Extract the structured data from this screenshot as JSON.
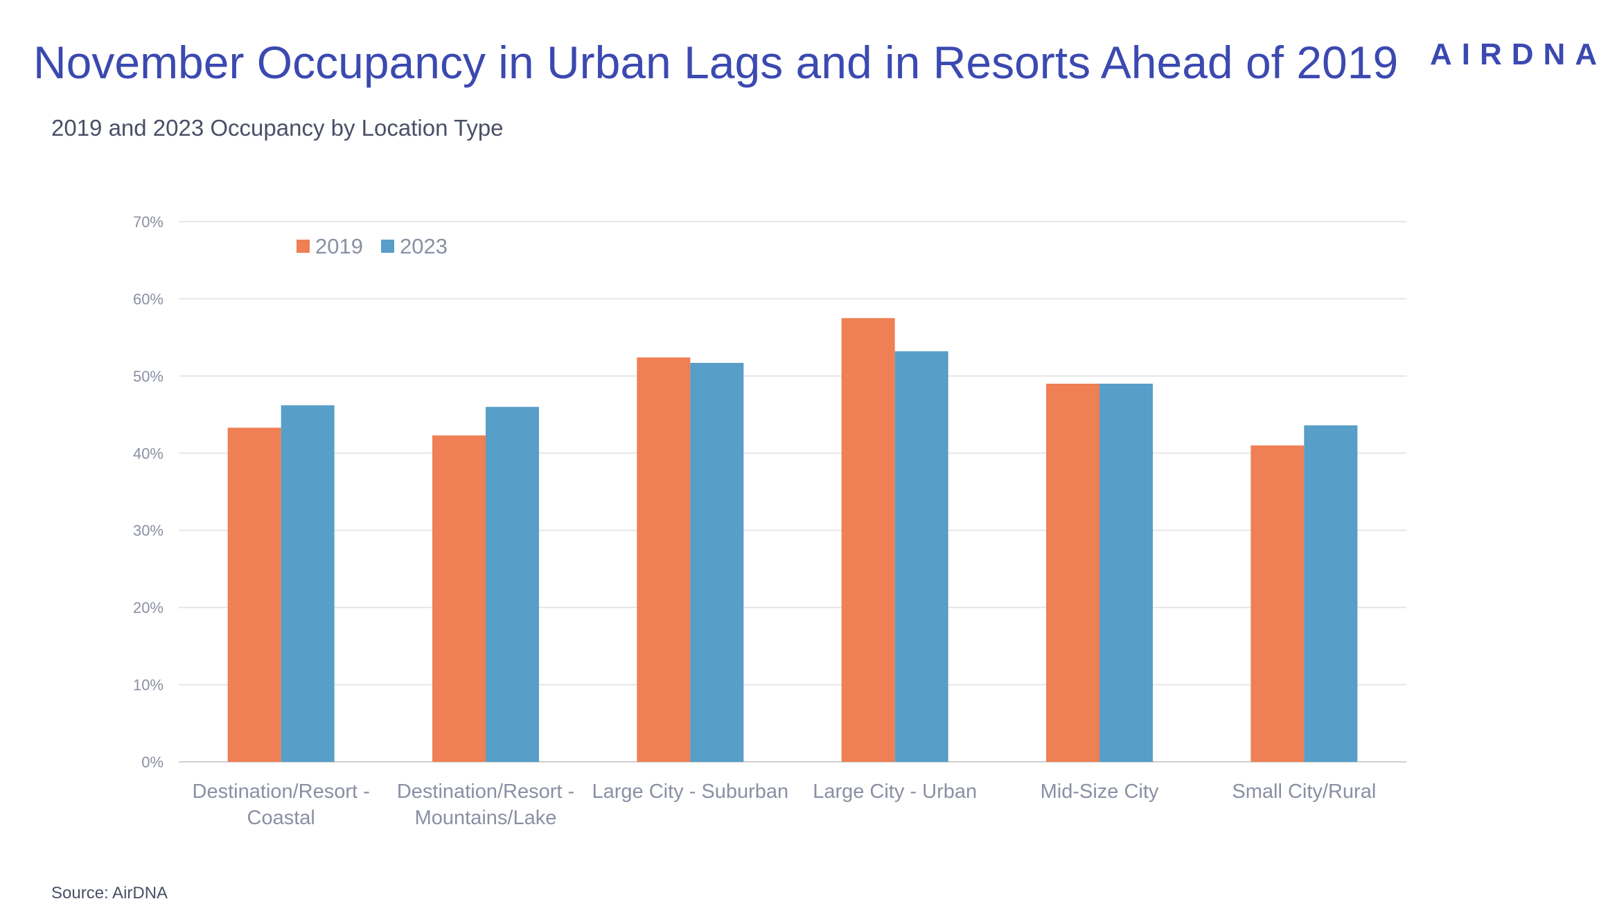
{
  "header": {
    "title": "November Occupancy in Urban Lags and in Resorts Ahead of 2019",
    "logo_text": "AIRDNA",
    "subtitle": "2019 and 2023 Occupancy by Location Type"
  },
  "footer": {
    "source": "Source: AirDNA"
  },
  "colors": {
    "title": "#3b49b0",
    "series_2019": "#ef7f55",
    "series_2023": "#579ec8",
    "grid": "#e6e6e6",
    "axis_text": "#8a8fa3"
  },
  "chart_data": {
    "type": "bar",
    "title": "",
    "xlabel": "",
    "ylabel": "",
    "ylim": [
      0,
      70
    ],
    "yticks": [
      0,
      10,
      20,
      30,
      40,
      50,
      60,
      70
    ],
    "ytick_labels": [
      "0%",
      "10%",
      "20%",
      "30%",
      "40%",
      "50%",
      "60%",
      "70%"
    ],
    "grid": true,
    "legend_position": "top-left",
    "categories": [
      [
        "Destination/Resort -",
        "Coastal"
      ],
      [
        "Destination/Resort -",
        "Mountains/Lake"
      ],
      [
        "Large City - Suburban"
      ],
      [
        "Large City - Urban"
      ],
      [
        "Mid-Size City"
      ],
      [
        "Small City/Rural"
      ]
    ],
    "series": [
      {
        "name": "2019",
        "color": "#ef7f55",
        "values": [
          43.3,
          42.3,
          52.4,
          57.5,
          49.0,
          41.0
        ]
      },
      {
        "name": "2023",
        "color": "#579ec8",
        "values": [
          46.2,
          46.0,
          51.7,
          53.2,
          49.0,
          43.6
        ]
      }
    ]
  }
}
